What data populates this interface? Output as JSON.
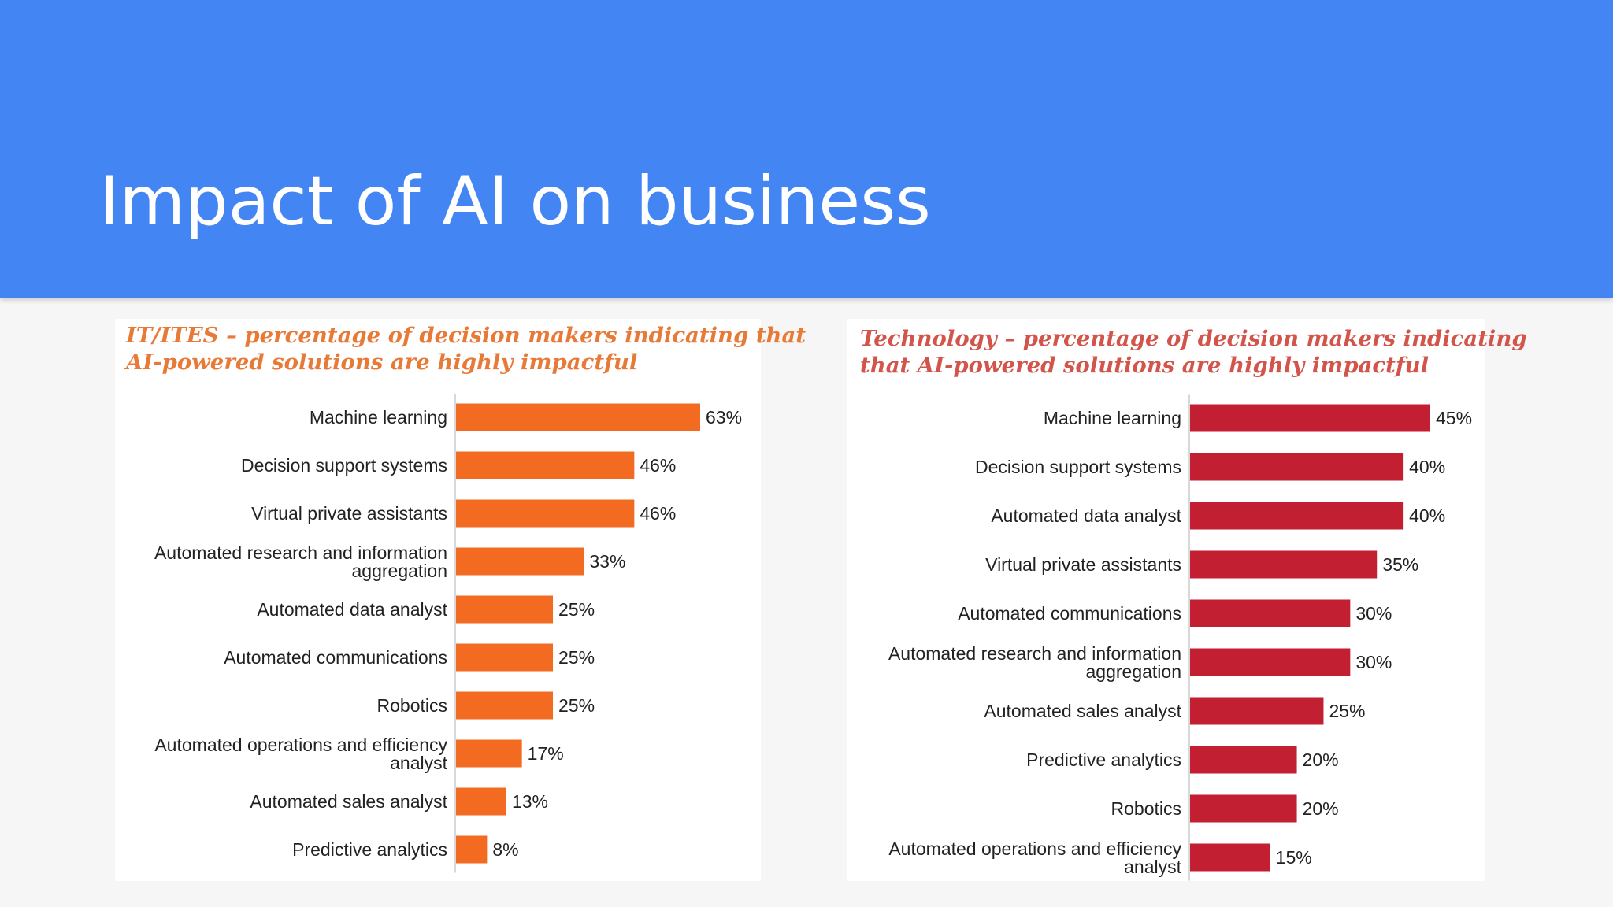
{
  "slide": {
    "title": "Impact of AI on business",
    "header_color": "#4485f4"
  },
  "chart_data": [
    {
      "type": "bar",
      "orientation": "horizontal",
      "title_line1": "IT/ITES – percentage of decision makers indicating that",
      "title_line2": "AI-powered solutions are highly impactful",
      "categories": [
        [
          "Machine learning"
        ],
        [
          "Decision support systems"
        ],
        [
          "Virtual private assistants"
        ],
        [
          "Automated research and information",
          "aggregation"
        ],
        [
          "Automated data analyst"
        ],
        [
          "Automated communications"
        ],
        [
          "Robotics"
        ],
        [
          "Automated operations and efficiency",
          "analyst"
        ],
        [
          "Automated sales analyst"
        ],
        [
          "Predictive analytics"
        ]
      ],
      "values": [
        63,
        46,
        46,
        33,
        25,
        25,
        25,
        17,
        13,
        8
      ],
      "value_labels": [
        "63%",
        "46%",
        "46%",
        "33%",
        "25%",
        "25%",
        "25%",
        "17%",
        "13%",
        "8%"
      ],
      "unit": "%",
      "bar_color": "#f26b21",
      "title_color": "#e87a38"
    },
    {
      "type": "bar",
      "orientation": "horizontal",
      "title_line1": "Technology – percentage of decision makers indicating",
      "title_line2": "that AI-powered solutions are highly impactful",
      "categories": [
        [
          "Machine learning"
        ],
        [
          "Decision support systems"
        ],
        [
          "Automated data analyst"
        ],
        [
          "Virtual private assistants"
        ],
        [
          "Automated communications"
        ],
        [
          "Automated research and information",
          "aggregation"
        ],
        [
          "Automated sales analyst"
        ],
        [
          "Predictive analytics"
        ],
        [
          "Robotics"
        ],
        [
          "Automated operations and efficiency",
          "analyst"
        ]
      ],
      "values": [
        45,
        40,
        40,
        35,
        30,
        30,
        25,
        20,
        20,
        15
      ],
      "value_labels": [
        "45%",
        "40%",
        "40%",
        "35%",
        "30%",
        "30%",
        "25%",
        "20%",
        "20%",
        "15%"
      ],
      "unit": "%",
      "bar_color": "#c21f32",
      "title_color": "#d2544a"
    }
  ]
}
